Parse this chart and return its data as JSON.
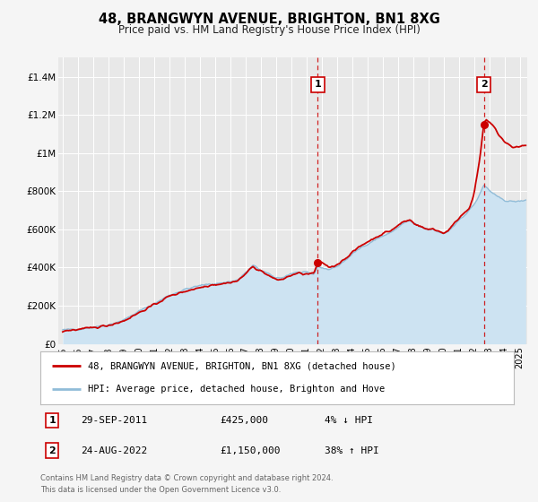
{
  "title": "48, BRANGWYN AVENUE, BRIGHTON, BN1 8XG",
  "subtitle": "Price paid vs. HM Land Registry's House Price Index (HPI)",
  "ylim": [
    0,
    1500000
  ],
  "xlim": [
    1994.7,
    2025.5
  ],
  "yticks": [
    0,
    200000,
    400000,
    600000,
    800000,
    1000000,
    1200000,
    1400000
  ],
  "ytick_labels": [
    "£0",
    "£200K",
    "£400K",
    "£600K",
    "£800K",
    "£1M",
    "£1.2M",
    "£1.4M"
  ],
  "xticks": [
    1995,
    1996,
    1997,
    1998,
    1999,
    2000,
    2001,
    2002,
    2003,
    2004,
    2005,
    2006,
    2007,
    2008,
    2009,
    2010,
    2011,
    2012,
    2013,
    2014,
    2015,
    2016,
    2017,
    2018,
    2019,
    2020,
    2021,
    2022,
    2023,
    2024,
    2025
  ],
  "background_color": "#f5f5f5",
  "plot_bg_color": "#e8e8e8",
  "hpi_line_color": "#90bcd8",
  "hpi_fill_color": "#cde3f2",
  "price_line_color": "#cc0000",
  "grid_color": "#ffffff",
  "sale1_x": 2011.75,
  "sale1_y": 425000,
  "sale1_label": "1",
  "sale1_date": "29-SEP-2011",
  "sale1_price": "£425,000",
  "sale1_hpi": "4% ↓ HPI",
  "sale2_x": 2022.65,
  "sale2_y": 1150000,
  "sale2_label": "2",
  "sale2_date": "24-AUG-2022",
  "sale2_price": "£1,150,000",
  "sale2_hpi": "38% ↑ HPI",
  "legend_label1": "48, BRANGWYN AVENUE, BRIGHTON, BN1 8XG (detached house)",
  "legend_label2": "HPI: Average price, detached house, Brighton and Hove",
  "footer1": "Contains HM Land Registry data © Crown copyright and database right 2024.",
  "footer2": "This data is licensed under the Open Government Licence v3.0."
}
